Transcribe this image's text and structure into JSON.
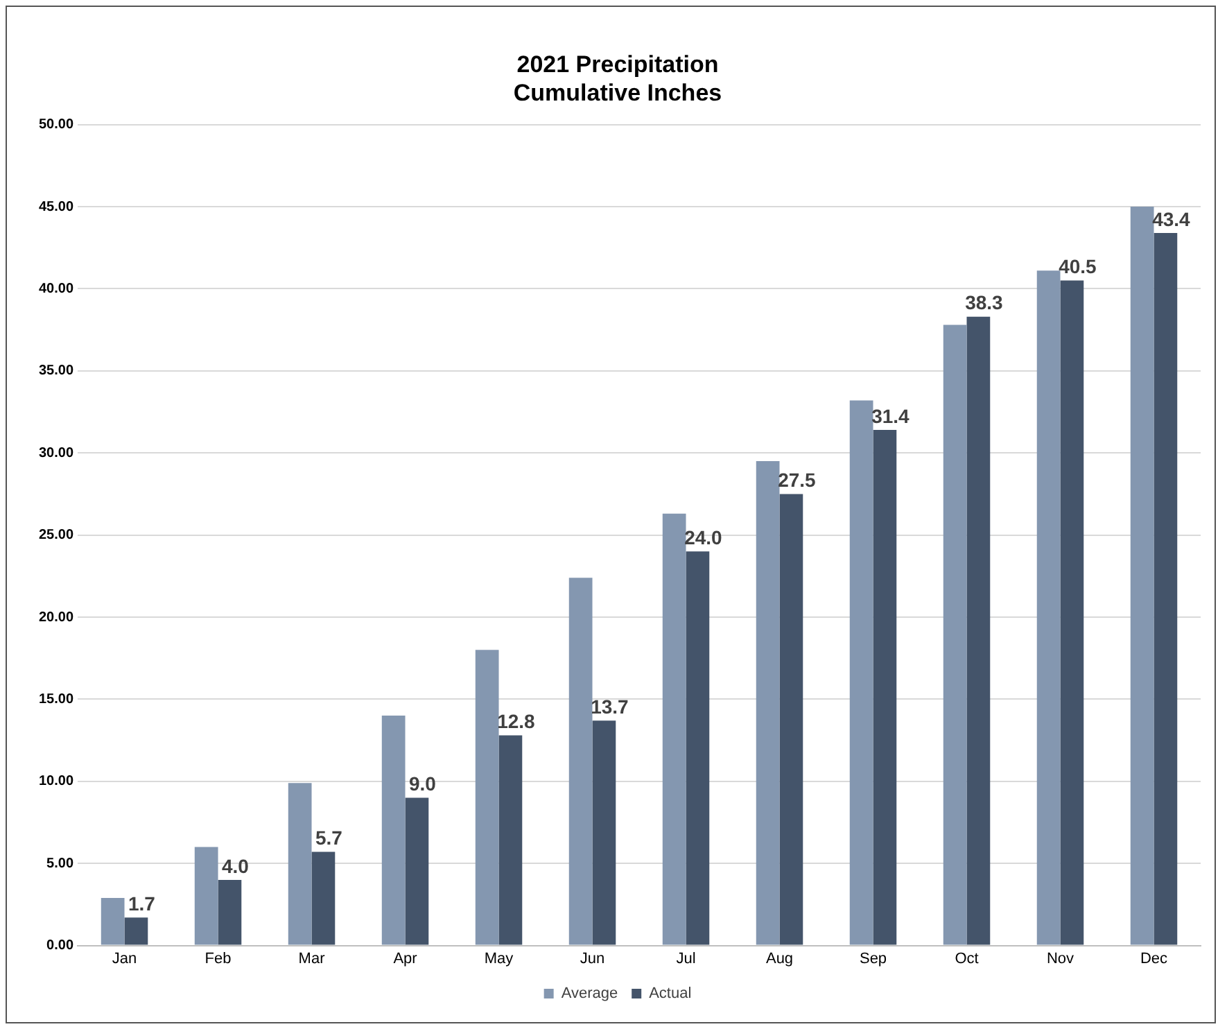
{
  "chart_data": {
    "type": "bar",
    "title": "2021 Precipitation\nCumulative Inches",
    "categories": [
      "Jan",
      "Feb",
      "Mar",
      "Apr",
      "May",
      "Jun",
      "Jul",
      "Aug",
      "Sep",
      "Oct",
      "Nov",
      "Dec"
    ],
    "series": [
      {
        "name": "Average",
        "color": "#8497b0",
        "values": [
          2.9,
          6.0,
          9.9,
          14.0,
          18.0,
          22.4,
          26.3,
          29.5,
          33.2,
          37.8,
          41.1,
          45.0
        ]
      },
      {
        "name": "Actual",
        "color": "#44546a",
        "values": [
          1.7,
          4.0,
          5.7,
          9.0,
          12.8,
          13.7,
          24.0,
          27.5,
          31.4,
          38.3,
          40.5,
          43.4
        ],
        "value_labels": [
          "1.7",
          "4.0",
          "5.7",
          "9.0",
          "12.8",
          "13.7",
          "24.0",
          "27.5",
          "31.4",
          "38.3",
          "40.5",
          "43.4"
        ]
      }
    ],
    "ylim": [
      0,
      50
    ],
    "yticks": [
      {
        "value": 0,
        "label": "0.00"
      },
      {
        "value": 5,
        "label": "5.00"
      },
      {
        "value": 10,
        "label": "10.00"
      },
      {
        "value": 15,
        "label": "15.00"
      },
      {
        "value": 20,
        "label": "20.00"
      },
      {
        "value": 25,
        "label": "25.00"
      },
      {
        "value": 30,
        "label": "30.00"
      },
      {
        "value": 35,
        "label": "35.00"
      },
      {
        "value": 40,
        "label": "40.00"
      },
      {
        "value": 45,
        "label": "45.00"
      },
      {
        "value": 50,
        "label": "50.00"
      }
    ],
    "grid": "y",
    "legend": "bottom"
  }
}
